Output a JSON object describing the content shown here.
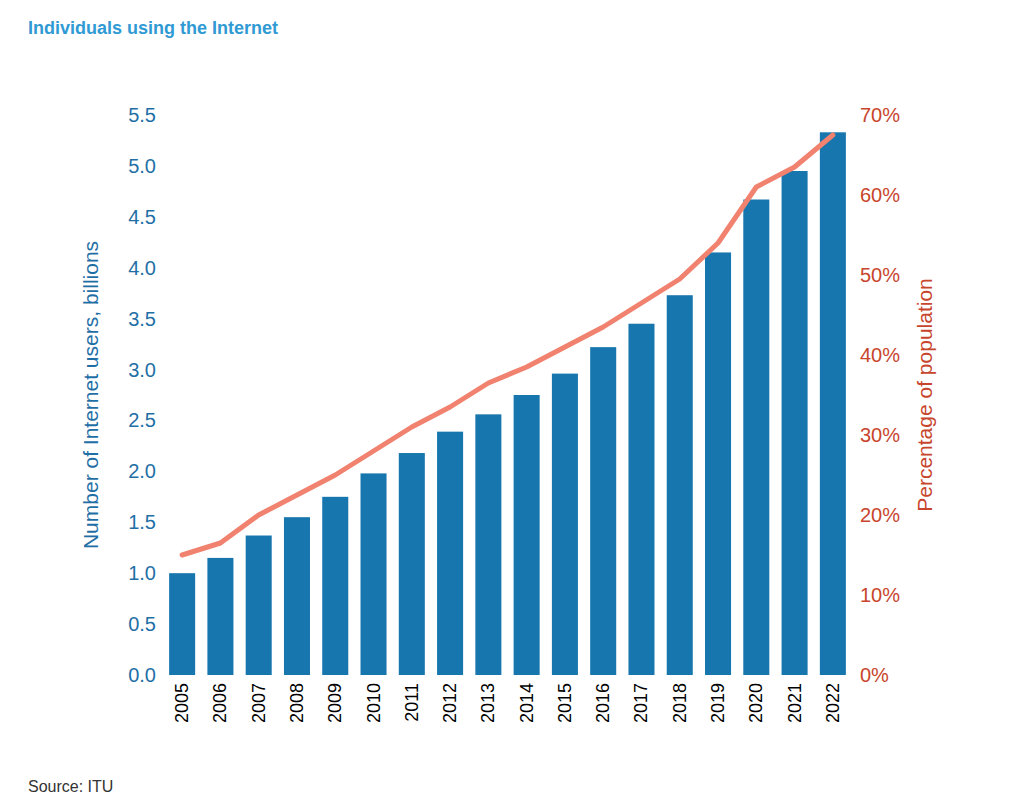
{
  "chart_data": {
    "type": "bar",
    "title": "Individuals using the Internet",
    "source": "Source: ITU",
    "ylabel": "Number of Internet users, billions",
    "y2label": "Percentage of population",
    "categories": [
      "2005",
      "2006",
      "2007",
      "2008",
      "2009",
      "2010",
      "2011",
      "2012",
      "2013",
      "2014",
      "2015",
      "2016",
      "2017",
      "2018",
      "2019",
      "2020",
      "2021",
      "2022"
    ],
    "series": [
      {
        "type": "bar",
        "color": "#1776ad",
        "values": [
          1.0,
          1.15,
          1.37,
          1.55,
          1.75,
          1.98,
          2.18,
          2.39,
          2.56,
          2.75,
          2.96,
          3.22,
          3.45,
          3.73,
          4.15,
          4.67,
          4.95,
          5.33
        ]
      },
      {
        "type": "line",
        "axis": "y2",
        "color": "#f0826f",
        "values": [
          15,
          16.5,
          20,
          22.5,
          25,
          28,
          31,
          33.5,
          36.5,
          38.5,
          41,
          43.5,
          46.5,
          49.5,
          54,
          61,
          63.5,
          67.5
        ]
      }
    ],
    "ylim": [
      0,
      5.5
    ],
    "yticks": [
      {
        "value": 0,
        "label": "0.0"
      },
      0.5,
      {
        "value": 1,
        "label": "1.0"
      },
      1.5,
      {
        "value": 2,
        "label": "2.0"
      },
      2.5,
      {
        "value": 3,
        "label": "3.0"
      },
      3.5,
      {
        "value": 4,
        "label": "4.0"
      },
      4.5,
      {
        "value": 5,
        "label": "5.0"
      },
      5.5
    ],
    "y2lim": [
      0,
      70
    ],
    "y2ticks": [
      {
        "value": 0,
        "label": "0%"
      },
      {
        "value": 10,
        "label": "10%"
      },
      {
        "value": 20,
        "label": "20%"
      },
      {
        "value": 30,
        "label": "30%"
      },
      {
        "value": 40,
        "label": "40%"
      },
      {
        "value": 50,
        "label": "50%"
      },
      {
        "value": 60,
        "label": "60%"
      },
      {
        "value": 70,
        "label": "70%"
      }
    ],
    "grid": false
  }
}
